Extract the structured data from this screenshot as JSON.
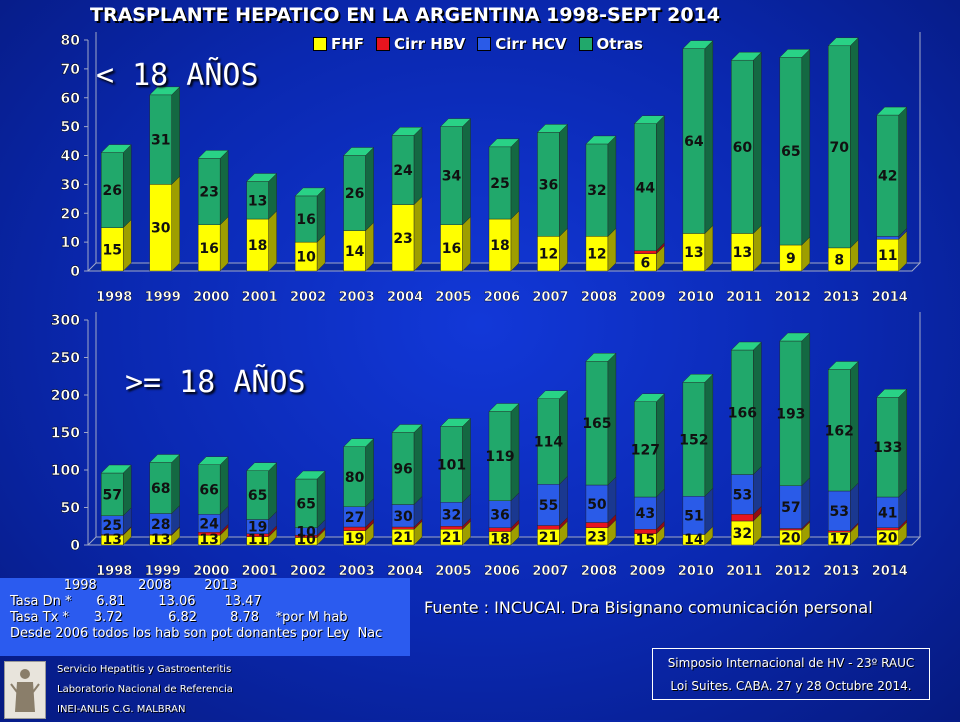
{
  "title": "TRASPLANTE HEPATICO EN LA ARGENTINA 1998-SEPT 2014",
  "legend": [
    {
      "name": "FHF",
      "color": "#ffff00"
    },
    {
      "name": "Cirr HBV",
      "color": "#e8141e"
    },
    {
      "name": "Cirr HCV",
      "color": "#2a5be8"
    },
    {
      "name": "Otras",
      "color": "#21a86b"
    }
  ],
  "chart_data": [
    {
      "type": "bar",
      "stacked": true,
      "label": "< 18 AÑOS",
      "categories": [
        "1998",
        "1999",
        "2000",
        "2001",
        "2002",
        "2003",
        "2004",
        "2005",
        "2006",
        "2007",
        "2008",
        "2009",
        "2010",
        "2011",
        "2012",
        "2013",
        "2014"
      ],
      "ylim": [
        0,
        80
      ],
      "yticks": [
        0,
        10,
        20,
        30,
        40,
        50,
        60,
        70,
        80
      ],
      "series": [
        {
          "name": "FHF",
          "color": "#ffff00",
          "values": [
            15,
            30,
            16,
            18,
            10,
            14,
            23,
            16,
            18,
            12,
            12,
            6,
            13,
            13,
            9,
            8,
            11
          ],
          "labeled": true
        },
        {
          "name": "Cirr HBV",
          "color": "#e8141e",
          "values": [
            0,
            0,
            0,
            0,
            0,
            0,
            0,
            0,
            0,
            0,
            0,
            1,
            0,
            0,
            0,
            0,
            0
          ],
          "labeled": false
        },
        {
          "name": "Cirr HCV",
          "color": "#2a5be8",
          "values": [
            0,
            0,
            0,
            0,
            0,
            0,
            0,
            0,
            0,
            0,
            0,
            0,
            0,
            0,
            0,
            0,
            1
          ],
          "labeled": false
        },
        {
          "name": "Otras",
          "color": "#21a86b",
          "values": [
            26,
            31,
            23,
            13,
            16,
            26,
            24,
            34,
            25,
            36,
            32,
            44,
            64,
            60,
            65,
            70,
            42
          ],
          "labeled": true
        }
      ]
    },
    {
      "type": "bar",
      "stacked": true,
      "label": ">= 18 AÑOS",
      "categories": [
        "1998",
        "1999",
        "2000",
        "2001",
        "2002",
        "2003",
        "2004",
        "2005",
        "2006",
        "2007",
        "2008",
        "2009",
        "2010",
        "2011",
        "2012",
        "2013",
        "2014"
      ],
      "ylim": [
        0,
        300
      ],
      "yticks": [
        0,
        50,
        100,
        150,
        200,
        250,
        300
      ],
      "series": [
        {
          "name": "FHF",
          "color": "#ffff00",
          "values": [
            13,
            13,
            13,
            11,
            10,
            19,
            21,
            21,
            18,
            21,
            23,
            15,
            14,
            32,
            20,
            17,
            20
          ],
          "labeled": true
        },
        {
          "name": "Cirr HBV",
          "color": "#e8141e",
          "values": [
            1,
            1,
            4,
            4,
            3,
            5,
            3,
            4,
            5,
            5,
            7,
            6,
            0,
            9,
            2,
            2,
            3
          ],
          "labeled": false
        },
        {
          "name": "Cirr HCV",
          "color": "#2a5be8",
          "values": [
            25,
            28,
            24,
            19,
            10,
            27,
            30,
            32,
            36,
            55,
            50,
            43,
            51,
            53,
            57,
            53,
            41
          ],
          "labeled": true
        },
        {
          "name": "Otras",
          "color": "#21a86b",
          "values": [
            57,
            68,
            66,
            65,
            65,
            80,
            96,
            101,
            119,
            114,
            165,
            127,
            152,
            166,
            193,
            162,
            133
          ],
          "labeled": true
        }
      ]
    }
  ],
  "tasa_box": {
    "line1": "             1998          2008        2013",
    "line2": "Tasa Dn *      6.81        13.06       13.47",
    "line3": "Tasa Tx *      3.72           6.82        8.78    *por M hab",
    "line4": "Desde 2006 todos los hab son pot donantes por Ley  Nac"
  },
  "source": "Fuente : INCUCAI. Dra Bisignano comunicación personal",
  "footer": {
    "line1": "Servicio Hepatitis y Gastroenteritis",
    "line2": "Laboratorio Nacional de Referencia",
    "line3": "INEI-ANLIS C.G. MALBRAN"
  },
  "simposio": {
    "line1": "Simposio Internacional de HV - 23º RAUC",
    "line2": "Loi Suites. CABA.  27 y 28  Octubre 2014."
  }
}
